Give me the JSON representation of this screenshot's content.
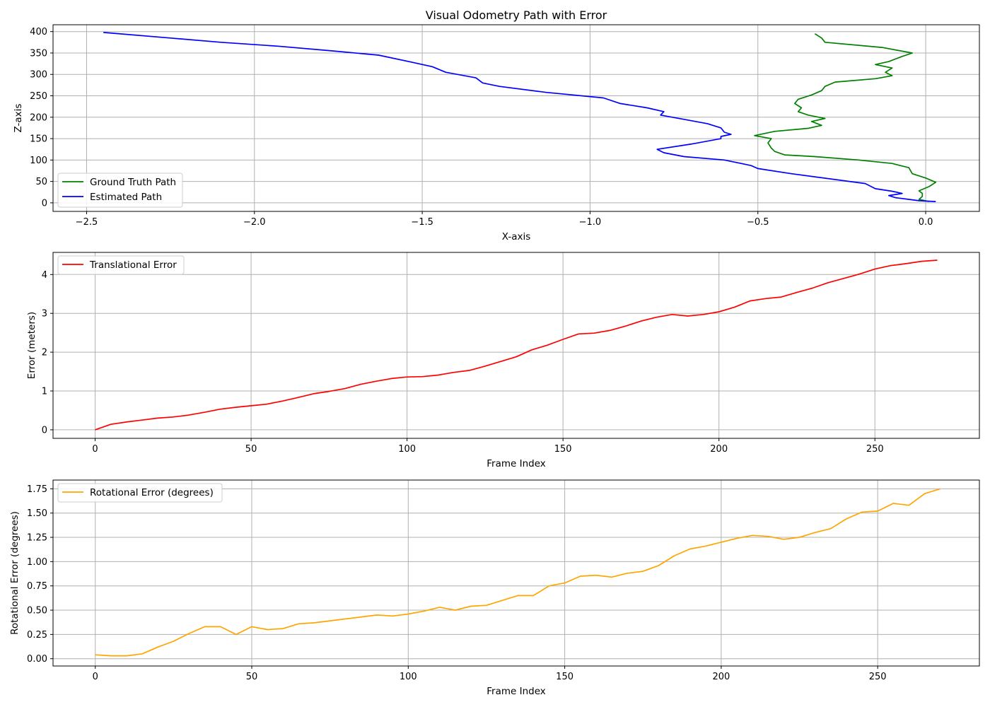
{
  "chart_data": [
    {
      "type": "line",
      "title": "Visual Odometry Path with Error",
      "xlabel": "X-axis",
      "ylabel": "Z-axis",
      "xlim": [
        -2.6,
        0.16
      ],
      "ylim": [
        -20,
        416
      ],
      "xticks": [
        -2.5,
        -2.0,
        -1.5,
        -1.0,
        -0.5,
        0.0
      ],
      "xtick_labels": [
        "−2.5",
        "−2.0",
        "−1.5",
        "−1.0",
        "−0.5",
        "0.0"
      ],
      "yticks": [
        0,
        50,
        100,
        150,
        200,
        250,
        300,
        350,
        400
      ],
      "ytick_labels": [
        "0",
        "50",
        "100",
        "150",
        "200",
        "250",
        "300",
        "350",
        "400"
      ],
      "grid": true,
      "legend_position": "lower-left",
      "series": [
        {
          "name": "Ground Truth Path",
          "color": "#008000",
          "points": [
            [
              0.01,
              3
            ],
            [
              -0.02,
              8
            ],
            [
              -0.01,
              15
            ],
            [
              -0.01,
              22
            ],
            [
              -0.02,
              28
            ],
            [
              0.01,
              38
            ],
            [
              0.03,
              48
            ],
            [
              0.0,
              58
            ],
            [
              -0.04,
              68
            ],
            [
              -0.05,
              82
            ],
            [
              -0.1,
              92
            ],
            [
              -0.2,
              100
            ],
            [
              -0.33,
              108
            ],
            [
              -0.42,
              112
            ],
            [
              -0.45,
              120
            ],
            [
              -0.46,
              128
            ],
            [
              -0.47,
              140
            ],
            [
              -0.46,
              150
            ],
            [
              -0.51,
              157
            ],
            [
              -0.45,
              167
            ],
            [
              -0.35,
              174
            ],
            [
              -0.31,
              181
            ],
            [
              -0.34,
              190
            ],
            [
              -0.3,
              197
            ],
            [
              -0.35,
              205
            ],
            [
              -0.38,
              213
            ],
            [
              -0.37,
              222
            ],
            [
              -0.39,
              232
            ],
            [
              -0.38,
              242
            ],
            [
              -0.34,
              252
            ],
            [
              -0.31,
              262
            ],
            [
              -0.3,
              272
            ],
            [
              -0.27,
              282
            ],
            [
              -0.15,
              290
            ],
            [
              -0.1,
              297
            ],
            [
              -0.12,
              305
            ],
            [
              -0.1,
              315
            ],
            [
              -0.15,
              323
            ],
            [
              -0.11,
              330
            ],
            [
              -0.07,
              342
            ],
            [
              -0.04,
              350
            ],
            [
              -0.13,
              363
            ],
            [
              -0.3,
              375
            ],
            [
              -0.31,
              385
            ],
            [
              -0.33,
              395
            ]
          ]
        },
        {
          "name": "Estimated Path",
          "color": "#0000ff",
          "points": [
            [
              0.03,
              3
            ],
            [
              -0.02,
              5
            ],
            [
              -0.05,
              8
            ],
            [
              -0.09,
              12
            ],
            [
              -0.11,
              17
            ],
            [
              -0.07,
              22
            ],
            [
              -0.1,
              27
            ],
            [
              -0.15,
              33
            ],
            [
              -0.18,
              45
            ],
            [
              -0.4,
              68
            ],
            [
              -0.5,
              80
            ],
            [
              -0.52,
              87
            ],
            [
              -0.55,
              92
            ],
            [
              -0.6,
              100
            ],
            [
              -0.72,
              108
            ],
            [
              -0.78,
              117
            ],
            [
              -0.8,
              125
            ],
            [
              -0.7,
              137
            ],
            [
              -0.61,
              150
            ],
            [
              -0.61,
              155
            ],
            [
              -0.58,
              160
            ],
            [
              -0.6,
              165
            ],
            [
              -0.61,
              175
            ],
            [
              -0.65,
              185
            ],
            [
              -0.72,
              195
            ],
            [
              -0.79,
              205
            ],
            [
              -0.78,
              213
            ],
            [
              -0.83,
              222
            ],
            [
              -0.91,
              232
            ],
            [
              -0.96,
              245
            ],
            [
              -1.13,
              258
            ],
            [
              -1.27,
              272
            ],
            [
              -1.32,
              280
            ],
            [
              -1.34,
              292
            ],
            [
              -1.43,
              305
            ],
            [
              -1.47,
              318
            ],
            [
              -1.54,
              330
            ],
            [
              -1.63,
              345
            ],
            [
              -1.77,
              355
            ],
            [
              -1.93,
              366
            ],
            [
              -2.1,
              375
            ],
            [
              -2.25,
              385
            ],
            [
              -2.45,
              398
            ]
          ]
        }
      ]
    },
    {
      "type": "line",
      "title": "",
      "xlabel": "Frame Index",
      "ylabel": "Error (meters)",
      "xlim": [
        -13.5,
        283.5
      ],
      "ylim": [
        -0.22,
        4.57
      ],
      "xticks": [
        0,
        50,
        100,
        150,
        200,
        250
      ],
      "xtick_labels": [
        "0",
        "50",
        "100",
        "150",
        "200",
        "250"
      ],
      "yticks": [
        0,
        1,
        2,
        3,
        4
      ],
      "ytick_labels": [
        "0",
        "1",
        "2",
        "3",
        "4"
      ],
      "grid": true,
      "legend_position": "top-left",
      "series": [
        {
          "name": "Translational Error",
          "color": "#ff0000",
          "x": [
            0,
            5,
            10,
            15,
            20,
            25,
            30,
            35,
            40,
            45,
            50,
            55,
            60,
            65,
            70,
            75,
            80,
            85,
            90,
            95,
            100,
            105,
            110,
            115,
            120,
            125,
            130,
            135,
            140,
            145,
            150,
            155,
            160,
            165,
            170,
            175,
            180,
            185,
            190,
            195,
            200,
            205,
            210,
            215,
            220,
            225,
            230,
            235,
            240,
            245,
            250,
            255,
            260,
            265,
            270
          ],
          "values": [
            0.0,
            0.14,
            0.2,
            0.25,
            0.3,
            0.33,
            0.38,
            0.45,
            0.53,
            0.58,
            0.62,
            0.66,
            0.74,
            0.83,
            0.93,
            0.99,
            1.06,
            1.17,
            1.25,
            1.32,
            1.36,
            1.37,
            1.41,
            1.48,
            1.53,
            1.64,
            1.76,
            1.88,
            2.06,
            2.18,
            2.33,
            2.47,
            2.49,
            2.56,
            2.67,
            2.8,
            2.9,
            2.97,
            2.93,
            2.97,
            3.04,
            3.16,
            3.32,
            3.38,
            3.42,
            3.54,
            3.65,
            3.79,
            3.9,
            4.01,
            4.14,
            4.23,
            4.28,
            4.34,
            4.37
          ]
        }
      ]
    },
    {
      "type": "line",
      "title": "",
      "xlabel": "Frame Index",
      "ylabel": "Rotational Error (degrees)",
      "xlim": [
        -13.5,
        282.5
      ],
      "ylim": [
        -0.075,
        1.84
      ],
      "xticks": [
        0,
        50,
        100,
        150,
        200,
        250
      ],
      "xtick_labels": [
        "0",
        "50",
        "100",
        "150",
        "200",
        "250"
      ],
      "yticks": [
        0.0,
        0.25,
        0.5,
        0.75,
        1.0,
        1.25,
        1.5,
        1.75
      ],
      "ytick_labels": [
        "0.00",
        "0.25",
        "0.50",
        "0.75",
        "1.00",
        "1.25",
        "1.50",
        "1.75"
      ],
      "grid": true,
      "legend_position": "top-left",
      "series": [
        {
          "name": "Rotational Error (degrees)",
          "color": "#ffa500",
          "x": [
            0,
            5,
            10,
            15,
            20,
            25,
            30,
            35,
            40,
            45,
            50,
            55,
            60,
            65,
            70,
            75,
            80,
            85,
            90,
            95,
            100,
            105,
            110,
            115,
            120,
            125,
            130,
            135,
            140,
            145,
            150,
            155,
            160,
            165,
            170,
            175,
            180,
            185,
            190,
            195,
            200,
            205,
            210,
            215,
            220,
            225,
            230,
            235,
            240,
            245,
            250,
            255,
            260,
            265,
            270
          ],
          "values": [
            0.04,
            0.03,
            0.03,
            0.05,
            0.12,
            0.18,
            0.26,
            0.33,
            0.33,
            0.25,
            0.33,
            0.3,
            0.31,
            0.36,
            0.37,
            0.39,
            0.41,
            0.43,
            0.45,
            0.44,
            0.46,
            0.49,
            0.53,
            0.5,
            0.54,
            0.55,
            0.6,
            0.65,
            0.65,
            0.75,
            0.78,
            0.85,
            0.86,
            0.84,
            0.88,
            0.9,
            0.96,
            1.06,
            1.13,
            1.16,
            1.2,
            1.24,
            1.27,
            1.26,
            1.23,
            1.25,
            1.3,
            1.34,
            1.44,
            1.51,
            1.52,
            1.6,
            1.58,
            1.7,
            1.75
          ]
        }
      ]
    }
  ]
}
